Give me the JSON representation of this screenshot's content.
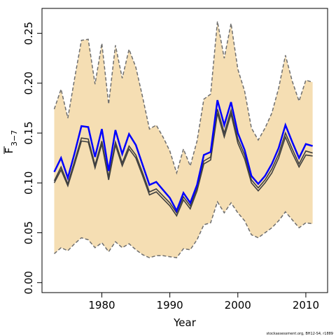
{
  "chart_data": {
    "type": "line",
    "xlabel": "Year",
    "ylabel_main": "F",
    "ylabel_sub": "3−7",
    "footnote": "stockassessment.org, BH12-S4, r1889",
    "xlim": [
      1971.2,
      2013.2
    ],
    "ylim": [
      -0.01,
      0.275
    ],
    "xticks": [
      1980,
      1990,
      2000,
      2010
    ],
    "yticks": [
      0.0,
      0.05,
      0.1,
      0.15,
      0.2,
      0.25
    ],
    "ytick_labels": [
      "0.00",
      "0.05",
      "0.10",
      "0.15",
      "0.20",
      "0.25"
    ],
    "colors": {
      "band": "#f5deb3",
      "bounds": "#6e6e6e",
      "estimate": "#0000ff",
      "dark": "#404040"
    },
    "x": [
      1973,
      1974,
      1975,
      1976,
      1977,
      1978,
      1979,
      1980,
      1981,
      1982,
      1983,
      1984,
      1985,
      1986,
      1987,
      1988,
      1989,
      1990,
      1991,
      1992,
      1993,
      1994,
      1995,
      1996,
      1997,
      1998,
      1999,
      2000,
      2001,
      2002,
      2003,
      2004,
      2005,
      2006,
      2007,
      2008,
      2009,
      2010,
      2011
    ],
    "series": [
      {
        "role": "upper_bound",
        "values": [
          0.174,
          0.194,
          0.165,
          0.205,
          0.243,
          0.244,
          0.199,
          0.24,
          0.179,
          0.238,
          0.205,
          0.234,
          0.216,
          0.186,
          0.154,
          0.158,
          0.146,
          0.132,
          0.11,
          0.134,
          0.117,
          0.142,
          0.184,
          0.189,
          0.262,
          0.225,
          0.26,
          0.214,
          0.192,
          0.155,
          0.143,
          0.155,
          0.17,
          0.195,
          0.228,
          0.202,
          0.182,
          0.203,
          0.201
        ]
      },
      {
        "role": "lower_bound",
        "values": [
          0.029,
          0.035,
          0.032,
          0.039,
          0.045,
          0.043,
          0.035,
          0.04,
          0.031,
          0.041,
          0.035,
          0.039,
          0.033,
          0.028,
          0.025,
          0.027,
          0.027,
          0.026,
          0.025,
          0.034,
          0.033,
          0.043,
          0.058,
          0.06,
          0.081,
          0.07,
          0.08,
          0.07,
          0.062,
          0.048,
          0.045,
          0.05,
          0.055,
          0.062,
          0.071,
          0.063,
          0.055,
          0.06,
          0.059
        ]
      },
      {
        "role": "estimate",
        "values": [
          0.111,
          0.125,
          0.105,
          0.13,
          0.157,
          0.156,
          0.126,
          0.154,
          0.112,
          0.153,
          0.129,
          0.149,
          0.138,
          0.118,
          0.098,
          0.101,
          0.093,
          0.085,
          0.072,
          0.09,
          0.08,
          0.098,
          0.128,
          0.131,
          0.183,
          0.158,
          0.181,
          0.15,
          0.133,
          0.107,
          0.099,
          0.107,
          0.119,
          0.135,
          0.158,
          0.141,
          0.125,
          0.139,
          0.137
        ]
      },
      {
        "role": "dark_line_upper",
        "values": [
          0.102,
          0.116,
          0.099,
          0.122,
          0.145,
          0.144,
          0.118,
          0.142,
          0.106,
          0.141,
          0.12,
          0.137,
          0.128,
          0.11,
          0.091,
          0.094,
          0.087,
          0.08,
          0.07,
          0.086,
          0.077,
          0.095,
          0.122,
          0.126,
          0.174,
          0.15,
          0.173,
          0.144,
          0.128,
          0.103,
          0.095,
          0.103,
          0.114,
          0.129,
          0.15,
          0.134,
          0.119,
          0.132,
          0.13
        ]
      },
      {
        "role": "dark_line_lower",
        "values": [
          0.1,
          0.113,
          0.097,
          0.119,
          0.142,
          0.141,
          0.115,
          0.139,
          0.103,
          0.138,
          0.117,
          0.134,
          0.125,
          0.107,
          0.088,
          0.091,
          0.084,
          0.077,
          0.067,
          0.083,
          0.074,
          0.092,
          0.119,
          0.123,
          0.17,
          0.146,
          0.169,
          0.14,
          0.124,
          0.1,
          0.092,
          0.1,
          0.11,
          0.125,
          0.146,
          0.13,
          0.116,
          0.128,
          0.127
        ]
      }
    ]
  }
}
